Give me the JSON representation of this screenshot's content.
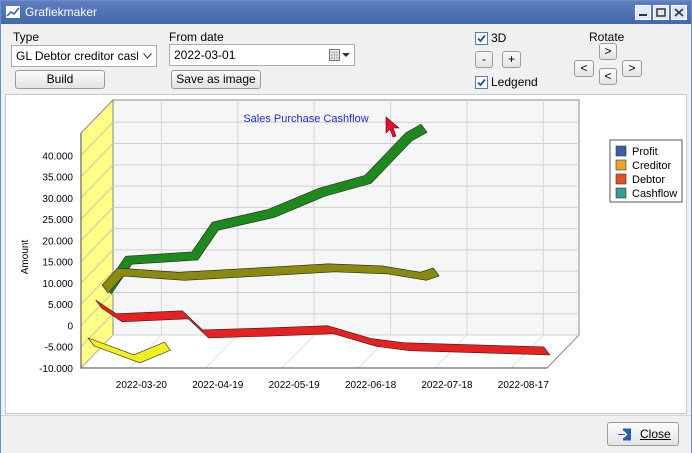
{
  "window": {
    "title": "Grafiekmaker"
  },
  "toolbar": {
    "type_label": "Type",
    "type_value": "GL Debtor creditor cashflow",
    "build_label": "Build",
    "from_date_label": "From date",
    "from_date_value": "2022-03-01",
    "save_image_label": "Save as image",
    "threed_label": "3D",
    "threed_checked": true,
    "minus_label": "-",
    "plus_label": "+",
    "legend_label": "Ledgend",
    "legend_checked": true,
    "rotate_label": "Rotate",
    "rotate_up_label": ">",
    "rotate_left_label": "<",
    "rotate_right_label": ">",
    "rotate_down_label": "<"
  },
  "chart_data": {
    "type": "line",
    "title": "Sales Purchase Cashflow",
    "ylabel": "Amount",
    "ylim": [
      -10000,
      45000
    ],
    "yticks": [
      "40.000",
      "35.000",
      "30.000",
      "25.000",
      "20.000",
      "15.000",
      "10.000",
      "5.000",
      "0",
      "-5.000",
      "-10.000"
    ],
    "ytick_values": [
      40000,
      35000,
      30000,
      25000,
      20000,
      15000,
      10000,
      5000,
      0,
      -5000,
      -10000
    ],
    "xticks": [
      "2022-03-20",
      "2022-04-19",
      "2022-05-19",
      "2022-06-18",
      "2022-07-18",
      "2022-08-17"
    ],
    "legend": [
      "Profit",
      "Creditor",
      "Debtor",
      "Cashflow"
    ],
    "legend_colors": [
      "#3a5fa8",
      "#f0a030",
      "#e05020",
      "#3a9aa0"
    ],
    "series": [
      {
        "name": "Profit",
        "color": "#1e8a1e",
        "x": [
          "2022-03-02",
          "2022-03-10",
          "2022-04-05",
          "2022-04-13",
          "2022-05-05",
          "2022-05-25",
          "2022-06-12",
          "2022-06-28",
          "2022-07-04"
        ],
        "values": [
          4000,
          11000,
          12000,
          19000,
          22000,
          27000,
          30000,
          40000,
          42000
        ]
      },
      {
        "name": "Creditor",
        "color": "#8a8a10",
        "x": [
          "2022-03-02",
          "2022-03-08",
          "2022-04-01",
          "2022-05-01",
          "2022-05-30",
          "2022-06-20",
          "2022-07-05",
          "2022-07-10"
        ],
        "values": [
          5000,
          9000,
          8000,
          9000,
          10000,
          9500,
          8000,
          9000
        ]
      },
      {
        "name": "Debtor",
        "color": "#e82020",
        "x": [
          "2022-03-02",
          "2022-03-10",
          "2022-04-05",
          "2022-04-13",
          "2022-05-10",
          "2022-06-01",
          "2022-06-18",
          "2022-07-01",
          "2022-08-25"
        ],
        "values": [
          3000,
          -200,
          500,
          -4000,
          -3500,
          -3000,
          -6000,
          -7000,
          -8000
        ]
      },
      {
        "name": "Cashflow",
        "color": "#f0f020",
        "x": [
          "2022-03-02",
          "2022-03-20",
          "2022-04-01"
        ],
        "values": [
          -4000,
          -8000,
          -5000
        ]
      }
    ]
  },
  "footer": {
    "close_label": "Close"
  },
  "colors": {
    "titlebar": "#4e70b3",
    "chart_title": "#1a2ed0"
  }
}
